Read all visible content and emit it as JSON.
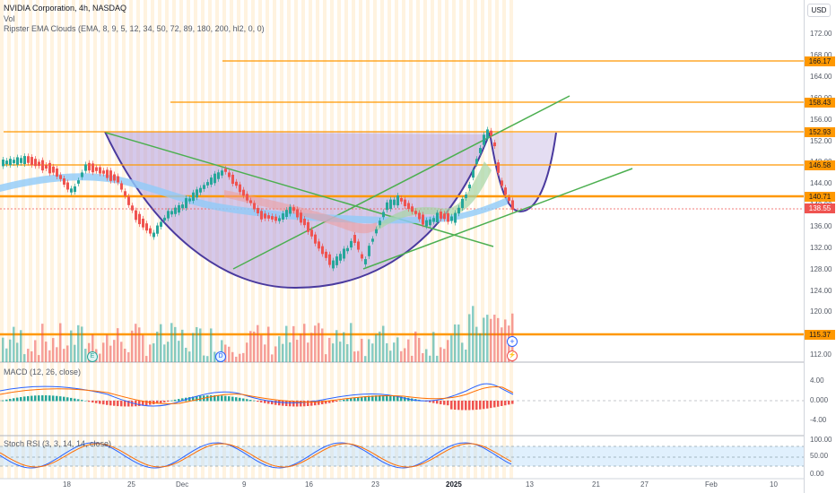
{
  "header": {
    "symbol_line": "NVIDIA Corporation, 4h, NASDAQ",
    "vol_label": "Vol",
    "indicator_line": "Ripster EMA Clouds (EMA, 8, 9, 5, 12, 34, 50, 72, 89, 180, 200, hl2, 0, 0)",
    "currency": "USD"
  },
  "price_axis": {
    "ticks": [
      "172.00",
      "168.00",
      "164.00",
      "160.00",
      "156.00",
      "152.00",
      "148.00",
      "144.00",
      "140.00",
      "136.00",
      "132.00",
      "128.00",
      "124.00",
      "120.00",
      "116.00",
      "112.00"
    ],
    "level_badges": [
      "166.17",
      "158.43",
      "152.93",
      "146.58",
      "140.71",
      "115.37"
    ],
    "last_price": "138.55"
  },
  "macd": {
    "label": "MACD (12, 26, close)",
    "ticks": [
      "4.00",
      "0.000",
      "-4.00"
    ]
  },
  "stoch": {
    "label": "Stoch RSI (3, 3, 14, 14, close)",
    "ticks": [
      "100.00",
      "50.00",
      "0.00"
    ]
  },
  "time_axis": {
    "labels": [
      "18",
      "25",
      "Dec",
      "9",
      "16",
      "23",
      "2025",
      "13",
      "21",
      "27",
      "Feb",
      "10"
    ]
  },
  "events": {
    "earnings": "E",
    "dividend": "D"
  },
  "colors": {
    "orange_level": "#ff9800",
    "green_trend": "#4caf50",
    "cup_line": "#4a3a9e",
    "cup_fill": "#b39ddb",
    "up": "#26a69a",
    "down": "#ef5350",
    "last_price": "#ef5350"
  }
}
